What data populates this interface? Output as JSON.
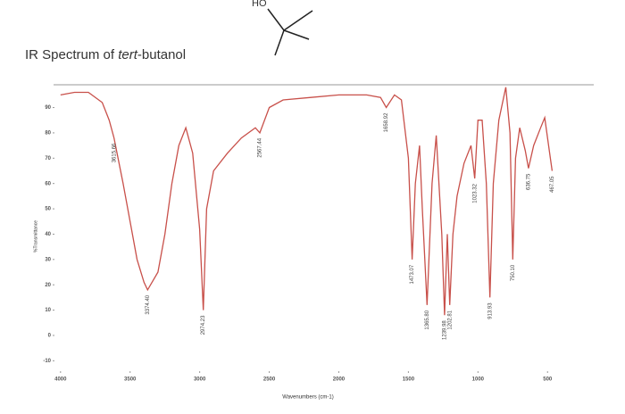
{
  "chart_data": {
    "type": "line",
    "title_parts": [
      "IR Spectrum of ",
      "tert",
      "-butanol"
    ],
    "structure_label": "HO",
    "xlabel": "Wavenumbers (cm-1)",
    "ylabel": "%Transmittance",
    "x": [
      4000,
      3900,
      3800,
      3700,
      3650,
      3615.66,
      3550,
      3500,
      3450,
      3400,
      3374.4,
      3300,
      3250,
      3200,
      3150,
      3100,
      3050,
      3000,
      2974.23,
      2950,
      2900,
      2800,
      2700,
      2600,
      2567.44,
      2500,
      2400,
      2200,
      2000,
      1800,
      1700,
      1658.92,
      1600,
      1550,
      1500,
      1473.07,
      1450,
      1420,
      1400,
      1365.8,
      1330,
      1300,
      1260,
      1239.98,
      1220,
      1202.81,
      1180,
      1150,
      1100,
      1050,
      1023.32,
      1000,
      970,
      940,
      913.93,
      890,
      850,
      800,
      770,
      750.1,
      730,
      700,
      660,
      636.75,
      600,
      550,
      520,
      480,
      467.05
    ],
    "series": [
      {
        "name": "%Transmittance",
        "color": "#c8504a",
        "values": [
          95,
          96,
          96,
          92,
          85,
          78,
          60,
          45,
          30,
          21,
          18,
          25,
          40,
          60,
          75,
          82,
          72,
          42,
          10,
          50,
          65,
          72,
          78,
          82,
          80,
          90,
          93,
          94,
          95,
          95,
          94,
          90,
          95,
          93,
          70,
          30,
          60,
          75,
          50,
          12,
          60,
          79,
          40,
          8,
          40,
          12,
          40,
          55,
          68,
          75,
          62,
          85,
          85,
          60,
          15,
          60,
          85,
          98,
          80,
          30,
          70,
          82,
          73,
          66,
          75,
          82,
          86,
          70,
          65
        ]
      }
    ],
    "annotations": [
      {
        "label": "3615.66",
        "x": 3615.66
      },
      {
        "label": "3374.40",
        "x": 3374.4
      },
      {
        "label": "2974.23",
        "x": 2974.23
      },
      {
        "label": "2567.44",
        "x": 2567.44
      },
      {
        "label": "1658.92",
        "x": 1658.92
      },
      {
        "label": "1473.07",
        "x": 1473.07
      },
      {
        "label": "1365.80",
        "x": 1365.8
      },
      {
        "label": "1239.98",
        "x": 1239.98
      },
      {
        "label": "1202.81",
        "x": 1202.81
      },
      {
        "label": "1023.32",
        "x": 1023.32
      },
      {
        "label": "913.93",
        "x": 913.93
      },
      {
        "label": "750.10",
        "x": 750.1
      },
      {
        "label": "636.75",
        "x": 636.75
      },
      {
        "label": "467.05",
        "x": 467.05
      }
    ],
    "xlim": [
      4050,
      200
    ],
    "xticks": [
      4000,
      3500,
      3000,
      2500,
      2000,
      1500,
      1000,
      500
    ],
    "ylim": [
      -12,
      99
    ],
    "yticks": [
      90,
      80,
      70,
      60,
      50,
      40,
      30,
      20,
      10,
      0,
      -10
    ]
  }
}
